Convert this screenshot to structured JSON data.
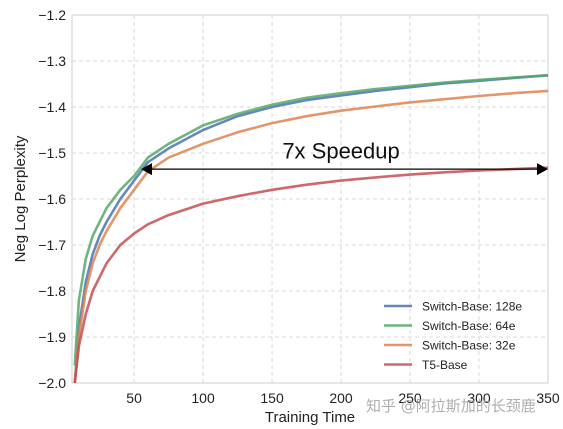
{
  "chart_data": {
    "type": "line",
    "title": "",
    "xlabel": "Training Time",
    "ylabel": "Neg Log Perplexity",
    "xlim": [
      5,
      350
    ],
    "ylim": [
      -2.0,
      -1.2
    ],
    "xticks": [
      50,
      100,
      150,
      200,
      250,
      300,
      350
    ],
    "xtick_labels": [
      "50",
      "100",
      "150",
      "200",
      "250",
      "300",
      "350"
    ],
    "yticks": [
      -2.0,
      -1.9,
      -1.8,
      -1.7,
      -1.6,
      -1.5,
      -1.4,
      -1.3,
      -1.2
    ],
    "ytick_labels": [
      "−2.0",
      "−1.9",
      "−1.8",
      "−1.7",
      "−1.6",
      "−1.5",
      "−1.4",
      "−1.3",
      "−1.2"
    ],
    "grid": true,
    "legend_position": "bottom-right",
    "series": [
      {
        "name": "Switch-Base: 128e",
        "color": "#4c72b0",
        "x": [
          7,
          10,
          15,
          20,
          25,
          30,
          40,
          50,
          60,
          75,
          100,
          125,
          150,
          175,
          200,
          225,
          250,
          275,
          300,
          325,
          350
        ],
        "y": [
          -2.0,
          -1.88,
          -1.78,
          -1.72,
          -1.68,
          -1.65,
          -1.6,
          -1.56,
          -1.52,
          -1.49,
          -1.45,
          -1.42,
          -1.4,
          -1.385,
          -1.375,
          -1.365,
          -1.357,
          -1.349,
          -1.343,
          -1.337,
          -1.331
        ]
      },
      {
        "name": "Switch-Base: 64e",
        "color": "#55a868",
        "x": [
          7,
          10,
          15,
          20,
          25,
          30,
          40,
          50,
          60,
          75,
          100,
          125,
          150,
          175,
          200,
          225,
          250,
          275,
          300,
          325,
          350
        ],
        "y": [
          -1.96,
          -1.82,
          -1.73,
          -1.68,
          -1.65,
          -1.62,
          -1.58,
          -1.55,
          -1.51,
          -1.48,
          -1.44,
          -1.415,
          -1.395,
          -1.38,
          -1.37,
          -1.361,
          -1.354,
          -1.347,
          -1.341,
          -1.336,
          -1.331
        ]
      },
      {
        "name": "Switch-Base: 32e",
        "color": "#dd8452",
        "x": [
          7,
          10,
          15,
          20,
          25,
          30,
          40,
          50,
          60,
          75,
          100,
          125,
          150,
          175,
          200,
          225,
          250,
          275,
          300,
          325,
          350
        ],
        "y": [
          -2.0,
          -1.9,
          -1.8,
          -1.74,
          -1.7,
          -1.67,
          -1.62,
          -1.58,
          -1.54,
          -1.51,
          -1.48,
          -1.455,
          -1.435,
          -1.42,
          -1.408,
          -1.399,
          -1.39,
          -1.383,
          -1.376,
          -1.37,
          -1.365
        ]
      },
      {
        "name": "T5-Base",
        "color": "#c44e52",
        "x": [
          7,
          10,
          15,
          20,
          25,
          30,
          40,
          50,
          60,
          75,
          100,
          125,
          150,
          175,
          200,
          225,
          250,
          275,
          300,
          325,
          350
        ],
        "y": [
          -2.0,
          -1.92,
          -1.85,
          -1.8,
          -1.77,
          -1.74,
          -1.7,
          -1.675,
          -1.655,
          -1.635,
          -1.61,
          -1.594,
          -1.58,
          -1.569,
          -1.56,
          -1.553,
          -1.547,
          -1.542,
          -1.538,
          -1.535,
          -1.532
        ]
      }
    ],
    "annotations": [
      {
        "text": "7x Speedup",
        "type": "double-arrow",
        "x_from": 55,
        "x_to": 350,
        "y": -1.535,
        "text_x": 200,
        "text_y": -1.495
      }
    ]
  },
  "watermark": "知乎 @阿拉斯加的长颈鹿"
}
